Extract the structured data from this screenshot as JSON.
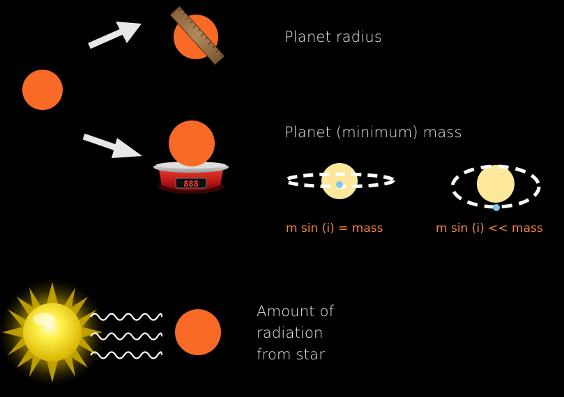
{
  "labels": {
    "planet_radius": "Planet radius",
    "planet_min_mass": "Planet (minimum) mass",
    "radiation_line1": "Amount of",
    "radiation_line2": "radiation",
    "radiation_line3": "from star"
  },
  "captions": {
    "edge_on": "m sin (i) = mass",
    "inclined": "m sin (i) << mass"
  },
  "scale_display": "888",
  "icons": {
    "planet": "planet-icon",
    "ruler": "ruler-icon",
    "scale": "scale-icon",
    "arrow": "arrow-icon",
    "star": "star-icon",
    "orbit": "orbit-icon",
    "waves": "radiation-waves-icon",
    "sun": "sun-icon"
  },
  "colors": {
    "background": "#000000",
    "planet": "#f96a27",
    "text": "#e9e9e9",
    "caption": "#f5843a",
    "host_star": "#fde79b",
    "small_planet": "#7cc8ee",
    "arrow": "#e8e8e8",
    "scale_red": "#cc1b1b",
    "ruler": "#a37a4f",
    "sun": "#ffe11a"
  }
}
